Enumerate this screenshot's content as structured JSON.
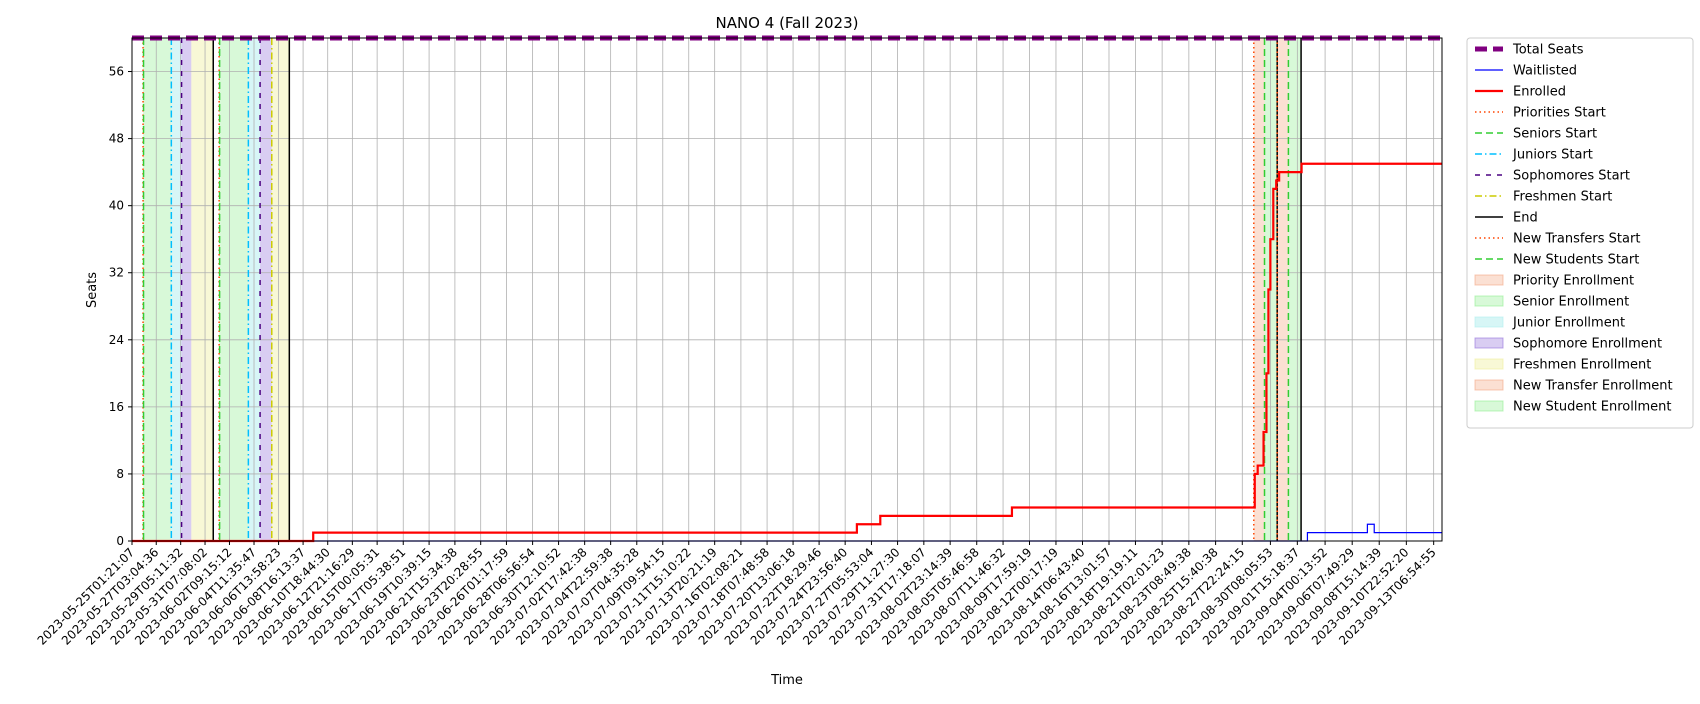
{
  "chart_data": {
    "type": "line",
    "title": "NANO 4 (Fall 2023)",
    "xlabel": "Time",
    "ylabel": "Seats",
    "ylim": [
      0,
      60
    ],
    "yticks": [
      0,
      8,
      16,
      24,
      32,
      40,
      48,
      56
    ],
    "grid": true,
    "legend_placement": "outside-right",
    "x_range": [
      "2023-05-25T01:21:07",
      "2023-09-14T00:00:00"
    ],
    "x_tick_labels": [
      "2023-05-25T01:21:07",
      "2023-05-27T03:04:36",
      "2023-05-29T05:11:32",
      "2023-05-31T07:08:02",
      "2023-06-02T09:15:12",
      "2023-06-04T11:35:47",
      "2023-06-06T13:58:23",
      "2023-06-08T16:13:37",
      "2023-06-10T18:44:30",
      "2023-06-12T21:16:29",
      "2023-06-15T00:05:31",
      "2023-06-17T05:38:51",
      "2023-06-19T10:39:15",
      "2023-06-21T15:34:38",
      "2023-06-23T20:28:55",
      "2023-06-26T01:17:59",
      "2023-06-28T06:56:54",
      "2023-06-30T12:10:52",
      "2023-07-02T17:42:38",
      "2023-07-04T22:59:38",
      "2023-07-07T04:35:28",
      "2023-07-09T09:54:15",
      "2023-07-11T15:10:22",
      "2023-07-13T20:21:19",
      "2023-07-16T02:08:21",
      "2023-07-18T07:48:58",
      "2023-07-20T13:06:18",
      "2023-07-22T18:29:46",
      "2023-07-24T23:56:40",
      "2023-07-27T05:53:04",
      "2023-07-29T11:27:30",
      "2023-07-31T17:18:07",
      "2023-08-02T23:14:39",
      "2023-08-05T05:46:58",
      "2023-08-07T11:46:32",
      "2023-08-09T17:59:19",
      "2023-08-12T00:17:19",
      "2023-08-14T06:43:40",
      "2023-08-16T13:01:57",
      "2023-08-18T19:19:11",
      "2023-08-21T02:01:23",
      "2023-08-23T08:49:38",
      "2023-08-25T15:40:38",
      "2023-08-27T22:24:15",
      "2023-08-30T08:05:53",
      "2023-09-01T15:18:37",
      "2023-09-04T00:13:52",
      "2023-09-06T07:49:29",
      "2023-09-08T15:14:39",
      "2023-09-10T22:52:20",
      "2023-09-13T06:54:55"
    ],
    "series": [
      {
        "name": "Total Seats",
        "color": "#800080",
        "style": "dashed-thick",
        "step": true,
        "points": [
          [
            "2023-05-25T01:21:07",
            60
          ],
          [
            "2023-09-14T00:00:00",
            60
          ]
        ]
      },
      {
        "name": "Waitlisted",
        "color": "#0000ff",
        "style": "solid-thin",
        "step": true,
        "points": [
          [
            "2023-05-25T01:21:07",
            0
          ],
          [
            "2023-09-02T12:00:00",
            1
          ],
          [
            "2023-09-07T15:00:00",
            2
          ],
          [
            "2023-09-08T05:00:00",
            1
          ],
          [
            "2023-09-14T00:00:00",
            1
          ]
        ]
      },
      {
        "name": "Enrolled",
        "color": "#ff0000",
        "style": "solid-thick",
        "step": true,
        "points": [
          [
            "2023-05-25T01:21:07",
            0
          ],
          [
            "2023-06-09T13:00:00",
            1
          ],
          [
            "2023-07-26T00:00:00",
            2
          ],
          [
            "2023-07-28T00:00:00",
            3
          ],
          [
            "2023-08-08T06:00:00",
            4
          ],
          [
            "2023-08-29T00:00:00",
            8
          ],
          [
            "2023-08-29T06:00:00",
            9
          ],
          [
            "2023-08-29T18:00:00",
            13
          ],
          [
            "2023-08-30T00:00:00",
            20
          ],
          [
            "2023-08-30T04:00:00",
            30
          ],
          [
            "2023-08-30T08:00:00",
            36
          ],
          [
            "2023-08-30T14:00:00",
            42
          ],
          [
            "2023-08-30T20:00:00",
            43
          ],
          [
            "2023-08-31T02:00:00",
            44
          ],
          [
            "2023-09-02T00:00:00",
            45
          ],
          [
            "2023-09-14T00:00:00",
            45
          ]
        ]
      }
    ],
    "bands": [
      {
        "name": "Senior Enrollment",
        "color": "#90ee90",
        "from": "2023-05-26T00:00:00",
        "to": "2023-05-28T10:00:00"
      },
      {
        "name": "Junior Enrollment",
        "color": "#afeeee",
        "from": "2023-05-28T10:00:00",
        "to": "2023-05-29T07:00:00"
      },
      {
        "name": "Sophomore Enrollment",
        "color": "#9370db",
        "from": "2023-05-29T07:00:00",
        "to": "2023-05-30T03:00:00"
      },
      {
        "name": "Freshmen Enrollment",
        "color": "#eeee99",
        "from": "2023-05-30T03:00:00",
        "to": "2023-06-01T00:00:00"
      },
      {
        "name": "Senior Enrollment",
        "color": "#90ee90",
        "from": "2023-06-01T12:00:00",
        "to": "2023-06-04T00:00:00"
      },
      {
        "name": "Junior Enrollment",
        "color": "#afeeee",
        "from": "2023-06-04T00:00:00",
        "to": "2023-06-05T00:00:00"
      },
      {
        "name": "Sophomore Enrollment",
        "color": "#9370db",
        "from": "2023-06-05T00:00:00",
        "to": "2023-06-06T00:00:00"
      },
      {
        "name": "Freshmen Enrollment",
        "color": "#eeee99",
        "from": "2023-06-06T00:00:00",
        "to": "2023-06-07T12:00:00"
      },
      {
        "name": "New Transfer Enrollment",
        "color": "#f4a582",
        "from": "2023-08-28T22:00:00",
        "to": "2023-08-29T20:00:00"
      },
      {
        "name": "New Student Enrollment",
        "color": "#90ee90",
        "from": "2023-08-29T20:00:00",
        "to": "2023-08-30T22:00:00"
      },
      {
        "name": "New Transfer Enrollment",
        "color": "#f4a582",
        "from": "2023-08-30T22:00:00",
        "to": "2023-08-31T21:00:00"
      },
      {
        "name": "New Student Enrollment",
        "color": "#90ee90",
        "from": "2023-08-31T21:00:00",
        "to": "2023-09-01T23:00:00"
      }
    ],
    "vlines": [
      {
        "name": "Priorities Start",
        "color": "#ff4500",
        "style": "dotted",
        "at": "2023-05-26T00:00:00"
      },
      {
        "name": "Seniors Start",
        "color": "#32cd32",
        "style": "dashed",
        "at": "2023-05-26T01:00:00"
      },
      {
        "name": "Juniors Start",
        "color": "#00bfff",
        "style": "dashdot",
        "at": "2023-05-28T10:00:00"
      },
      {
        "name": "Sophomores Start",
        "color": "#4b0082",
        "style": "loosedash",
        "at": "2023-05-29T07:00:00"
      },
      {
        "name": "End",
        "color": "#000000",
        "style": "solid",
        "at": "2023-06-01T00:00:00"
      },
      {
        "name": "Priorities Start",
        "color": "#ff4500",
        "style": "dotted",
        "at": "2023-06-01T12:00:00"
      },
      {
        "name": "Seniors Start",
        "color": "#32cd32",
        "style": "dashed",
        "at": "2023-06-01T13:00:00"
      },
      {
        "name": "Juniors Start",
        "color": "#00bfff",
        "style": "dashdot",
        "at": "2023-06-04T00:00:00"
      },
      {
        "name": "Sophomores Start",
        "color": "#4b0082",
        "style": "loosedash",
        "at": "2023-06-05T00:00:00"
      },
      {
        "name": "Freshmen Start",
        "color": "#cccc00",
        "style": "dashdot",
        "at": "2023-06-06T00:00:00"
      },
      {
        "name": "End",
        "color": "#000000",
        "style": "solid",
        "at": "2023-06-07T12:00:00"
      },
      {
        "name": "New Transfers Start",
        "color": "#ff4500",
        "style": "dotted",
        "at": "2023-08-28T22:00:00"
      },
      {
        "name": "New Students Start",
        "color": "#32cd32",
        "style": "dashed",
        "at": "2023-08-29T20:00:00"
      },
      {
        "name": "End",
        "color": "#000000",
        "style": "solid",
        "at": "2023-08-30T22:00:00"
      },
      {
        "name": "New Transfers Start",
        "color": "#ff4500",
        "style": "dotted",
        "at": "2023-08-30T22:00:00"
      },
      {
        "name": "New Students Start",
        "color": "#32cd32",
        "style": "dashed",
        "at": "2023-08-31T21:00:00"
      },
      {
        "name": "End",
        "color": "#000000",
        "style": "solid",
        "at": "2023-09-01T23:00:00"
      }
    ],
    "legend": [
      {
        "label": "Total Seats",
        "kind": "line",
        "color": "#800080",
        "style": "dashed-thick"
      },
      {
        "label": "Waitlisted",
        "kind": "line",
        "color": "#0000ff",
        "style": "solid-thin"
      },
      {
        "label": "Enrolled",
        "kind": "line",
        "color": "#ff0000",
        "style": "solid-thick"
      },
      {
        "label": "Priorities Start",
        "kind": "line",
        "color": "#ff4500",
        "style": "dotted"
      },
      {
        "label": "Seniors Start",
        "kind": "line",
        "color": "#32cd32",
        "style": "dashed"
      },
      {
        "label": "Juniors Start",
        "kind": "line",
        "color": "#00bfff",
        "style": "dashdot"
      },
      {
        "label": "Sophomores Start",
        "kind": "line",
        "color": "#4b0082",
        "style": "loosedash"
      },
      {
        "label": "Freshmen Start",
        "kind": "line",
        "color": "#cccc00",
        "style": "dashdot"
      },
      {
        "label": "End",
        "kind": "line",
        "color": "#000000",
        "style": "solid"
      },
      {
        "label": "New Transfers Start",
        "kind": "line",
        "color": "#ff4500",
        "style": "dotted"
      },
      {
        "label": "New Students Start",
        "kind": "line",
        "color": "#32cd32",
        "style": "dashed"
      },
      {
        "label": "Priority Enrollment",
        "kind": "patch",
        "color": "#f4a582"
      },
      {
        "label": "Senior Enrollment",
        "kind": "patch",
        "color": "#90ee90"
      },
      {
        "label": "Junior Enrollment",
        "kind": "patch",
        "color": "#afeeee"
      },
      {
        "label": "Sophomore Enrollment",
        "kind": "patch",
        "color": "#9370db"
      },
      {
        "label": "Freshmen Enrollment",
        "kind": "patch",
        "color": "#eeee99"
      },
      {
        "label": "New Transfer Enrollment",
        "kind": "patch",
        "color": "#f4a582"
      },
      {
        "label": "New Student Enrollment",
        "kind": "patch",
        "color": "#90ee90"
      }
    ]
  }
}
